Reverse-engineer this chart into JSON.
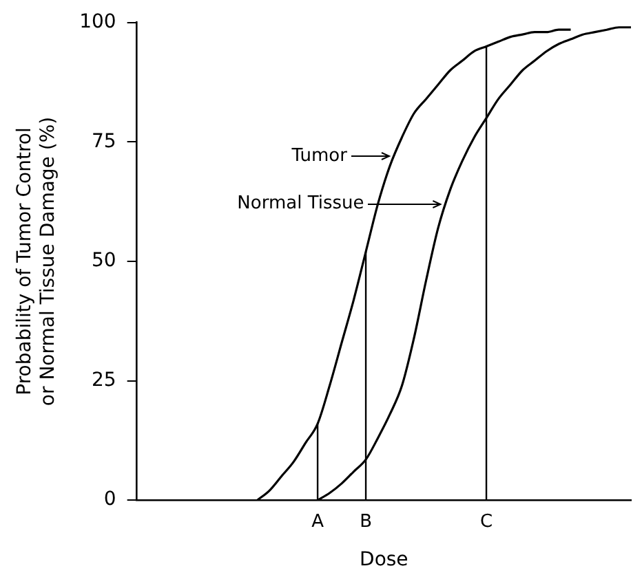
{
  "chart_data": {
    "type": "line",
    "xlabel": "Dose",
    "ylabel": "Probability of Tumor Control\nor Normal Tissue Damage (%)",
    "categories": [
      null,
      null,
      null,
      null,
      null,
      null,
      null,
      null,
      null,
      null,
      null,
      null,
      null,
      null,
      null,
      "A",
      null,
      null,
      null,
      "B",
      null,
      null,
      null,
      null,
      null,
      null,
      null,
      null,
      null,
      "C",
      null,
      null,
      null,
      null,
      null,
      null,
      null,
      null,
      null,
      null,
      null,
      null
    ],
    "series": [
      {
        "name": "Tumor",
        "color": "#000000",
        "values": [
          null,
          null,
          null,
          null,
          null,
          null,
          null,
          null,
          null,
          null,
          0,
          2,
          5,
          8,
          12,
          16,
          24,
          33,
          42,
          52,
          62,
          70,
          76,
          81,
          84,
          87,
          90,
          92,
          94,
          95,
          96,
          97,
          97.5,
          98,
          98,
          98.5,
          98.5,
          null,
          null,
          null,
          null,
          null
        ]
      },
      {
        "name": "Normal Tissue",
        "color": "#000000",
        "values": [
          null,
          null,
          null,
          null,
          null,
          null,
          null,
          null,
          null,
          null,
          null,
          null,
          null,
          null,
          null,
          0,
          1.5,
          3.5,
          6,
          8.5,
          13,
          18,
          24,
          34,
          46,
          57,
          65,
          71,
          76,
          80,
          84,
          87,
          90,
          92,
          94,
          95.5,
          96.5,
          97.5,
          98,
          98.5,
          99,
          99
        ]
      }
    ],
    "ylim": [
      0,
      100
    ],
    "yticks": [
      0,
      25,
      50,
      75,
      100
    ],
    "grid": false,
    "legend": "left",
    "ref_lines": [
      {
        "axis": "x",
        "value": "A"
      },
      {
        "axis": "x",
        "value": "B"
      },
      {
        "axis": "x",
        "value": "C"
      }
    ]
  }
}
